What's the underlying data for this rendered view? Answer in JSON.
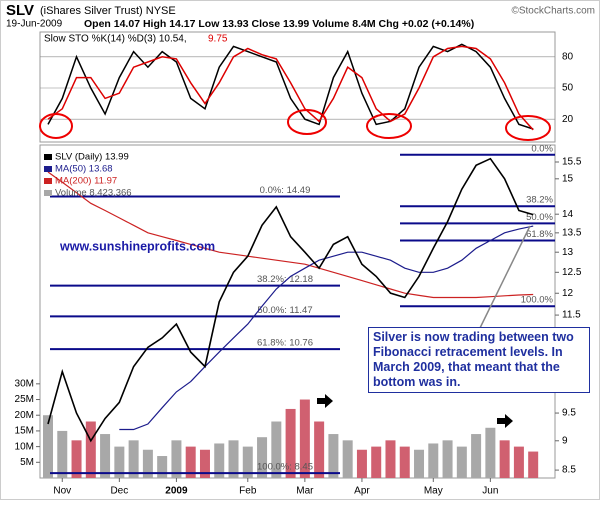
{
  "chart_data": {
    "type": "stock",
    "symbol": "SLV",
    "title": "(iShares Silver Trust) NYSE",
    "credit": "©StockCharts.com",
    "date": "19-Jun-2009",
    "quote": "Open 14.07 High 14.17 Low 13.93 Close 13.99 Volume 8.4M Chg +0.02 (+0.14%)",
    "categories": [
      null,
      "Nov",
      null,
      null,
      null,
      "Dec",
      null,
      null,
      null,
      "2009",
      null,
      null,
      null,
      null,
      "Feb",
      null,
      null,
      null,
      "Mar",
      null,
      null,
      null,
      "Apr",
      null,
      null,
      null,
      null,
      "May",
      null,
      null,
      null,
      "Jun",
      null,
      null,
      null
    ],
    "stoch": {
      "label": "Slow STO %K(14) %D(3) 10.54,",
      "label_d": "9.75",
      "ylim": [
        0,
        100
      ],
      "yticks": [
        20,
        50,
        80
      ],
      "series": [
        {
          "color": "#000000",
          "values": [
            15,
            40,
            80,
            50,
            25,
            60,
            85,
            70,
            85,
            75,
            40,
            30,
            70,
            90,
            85,
            80,
            75,
            40,
            20,
            15,
            60,
            85,
            45,
            15,
            18,
            30,
            70,
            90,
            85,
            92,
            85,
            70,
            40,
            15,
            10.54
          ]
        },
        {
          "color": "#dd0000",
          "values": [
            20,
            30,
            60,
            60,
            40,
            45,
            70,
            75,
            80,
            78,
            55,
            35,
            55,
            80,
            88,
            82,
            78,
            55,
            30,
            18,
            40,
            70,
            60,
            30,
            18,
            25,
            50,
            80,
            88,
            90,
            88,
            78,
            55,
            25,
            9.75
          ]
        }
      ]
    },
    "price": {
      "log": true,
      "ylim": [
        8.37,
        15.96
      ],
      "yticks": [
        8.5,
        9.0,
        9.5,
        11.5,
        12.0,
        12.5,
        13.0,
        13.5,
        14.0,
        15.0,
        15.5
      ],
      "series": [
        {
          "name": "SLV (Daily) 13.99",
          "color": "#000000",
          "values": [
            9.3,
            10.3,
            9.5,
            9.0,
            9.4,
            9.7,
            10.4,
            10.8,
            11.0,
            11.3,
            10.7,
            10.4,
            11.8,
            12.5,
            12.9,
            13.7,
            14.2,
            13.4,
            13.0,
            12.6,
            13.2,
            13.4,
            12.7,
            12.4,
            12.0,
            11.9,
            12.4,
            13.1,
            13.8,
            14.7,
            15.4,
            15.6,
            15.0,
            14.1,
            13.99
          ]
        },
        {
          "name": "MA(50) 13.68",
          "color": "#1c1c8c",
          "values": [
            null,
            null,
            null,
            null,
            null,
            9.2,
            9.2,
            9.3,
            9.6,
            9.9,
            10.1,
            10.4,
            10.7,
            11.0,
            11.3,
            11.7,
            12.1,
            12.4,
            12.6,
            12.8,
            12.9,
            13.0,
            13.0,
            12.9,
            12.8,
            12.6,
            12.5,
            12.5,
            12.6,
            12.8,
            13.1,
            13.3,
            13.5,
            13.6,
            13.68
          ]
        },
        {
          "name": "MA(200) 11.97",
          "color": "#cc2222",
          "values": [
            15.2,
            14.9,
            14.6,
            14.3,
            14.1,
            13.9,
            13.7,
            13.5,
            13.4,
            13.3,
            13.2,
            13.1,
            13.0,
            12.95,
            12.9,
            12.85,
            12.8,
            12.75,
            12.7,
            12.6,
            12.5,
            12.4,
            12.3,
            12.2,
            12.1,
            12.0,
            11.95,
            11.9,
            11.9,
            11.9,
            11.9,
            11.92,
            11.94,
            11.96,
            11.97
          ]
        }
      ]
    },
    "volume": {
      "name": "Volume 8,423,366",
      "color": "#a8a8a8",
      "down_color": "#d06070",
      "ylim": [
        0,
        36000000
      ],
      "yticks": [
        {
          "value": 5000000,
          "label": "5M"
        },
        {
          "value": 10000000,
          "label": "10M"
        },
        {
          "value": 15000000,
          "label": "15M"
        },
        {
          "value": 20000000,
          "label": "20M"
        },
        {
          "value": 25000000,
          "label": "25M"
        },
        {
          "value": 30000000,
          "label": "30M"
        }
      ],
      "values": [
        20000000,
        15000000,
        12000000,
        18000000,
        14000000,
        10000000,
        12000000,
        9000000,
        7000000,
        12000000,
        10000000,
        9000000,
        11000000,
        12000000,
        10000000,
        13000000,
        18000000,
        22000000,
        25000000,
        18000000,
        14000000,
        12000000,
        9000000,
        10000000,
        12000000,
        10000000,
        9000000,
        11000000,
        12000000,
        10000000,
        14000000,
        16000000,
        12000000,
        10000000,
        8423366
      ]
    },
    "fib_color": "#0a0a8a",
    "fib_left": [
      {
        "label": "0.0%: 14.49",
        "value": 14.49
      },
      {
        "label": "38.2%: 12.18",
        "value": 12.18
      },
      {
        "label": "50.0%: 11.47",
        "value": 11.47
      },
      {
        "label": "61.8%: 10.76",
        "value": 10.76
      },
      {
        "label": "100.0%: 8.45",
        "value": 8.45
      }
    ],
    "fib_right": [
      {
        "label": "0.0%",
        "value": 15.72
      },
      {
        "label": "38.2%",
        "value": 14.22
      },
      {
        "label": "50.0%",
        "value": 13.75
      },
      {
        "label": "61.8%",
        "value": 13.3
      },
      {
        "label": "100.0%",
        "value": 11.7
      }
    ],
    "website": "www.sunshineprofits.com",
    "annotation": [
      "Silver is now trading between two",
      "Fibonacci retracement levels. In",
      "March 2009, that meant that the",
      "bottom was in."
    ]
  }
}
